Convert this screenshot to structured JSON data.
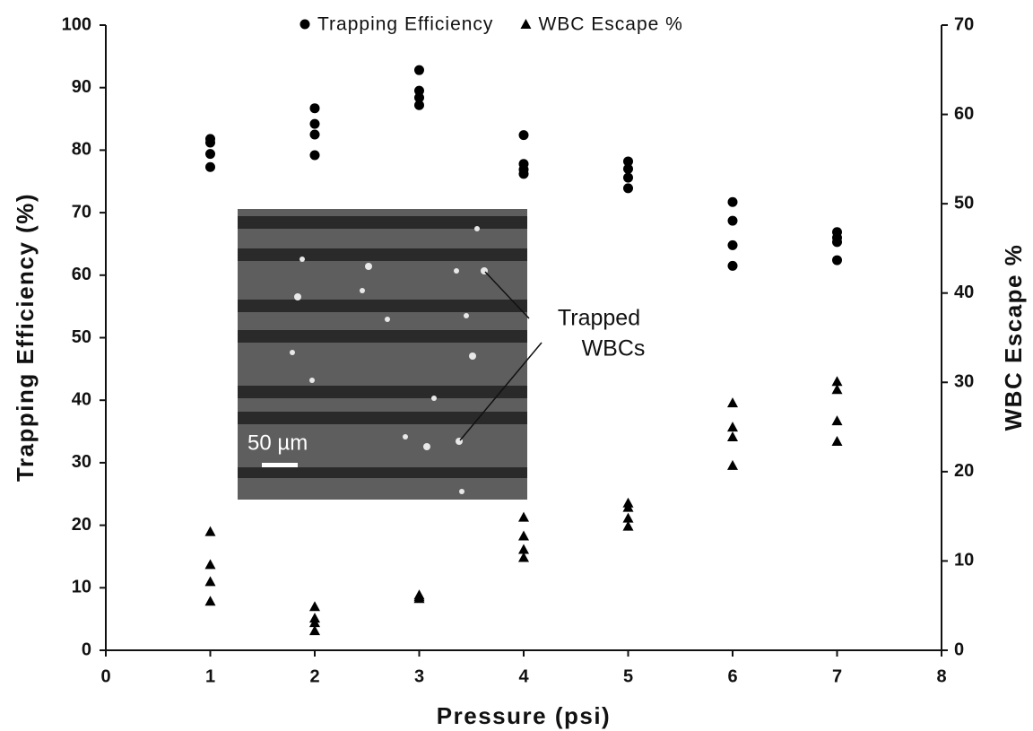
{
  "chart_data": {
    "type": "scatter",
    "xlabel": "Pressure (psi)",
    "ylabel": "Trapping Efficiency (%)",
    "y2label": "WBC Escape %",
    "xlim": [
      0,
      8
    ],
    "xticks": [
      0,
      1,
      2,
      3,
      4,
      5,
      6,
      7,
      8
    ],
    "ylim": [
      0,
      100
    ],
    "yticks": [
      0,
      10,
      20,
      30,
      40,
      50,
      60,
      70,
      80,
      90,
      100
    ],
    "y2lim": [
      0,
      70
    ],
    "y2ticks": [
      0,
      10,
      20,
      30,
      40,
      50,
      60,
      70
    ],
    "legend": "top",
    "series": [
      {
        "name": "Trapping Efficiency",
        "color": "#000000",
        "marker": "circle",
        "x": [
          1,
          1,
          1,
          1,
          2,
          2,
          2,
          2,
          3,
          3,
          3,
          3,
          4,
          4,
          4,
          4,
          5,
          5,
          5,
          5,
          6,
          6,
          6,
          6,
          7,
          7,
          7,
          7
        ],
        "values": [
          81.8,
          81.2,
          79.4,
          77.3,
          86.7,
          84.2,
          82.5,
          79.2,
          92.8,
          89.5,
          88.4,
          87.2,
          82.4,
          77.8,
          76.9,
          76.2,
          78.2,
          77.0,
          75.6,
          73.9,
          71.7,
          68.7,
          64.8,
          61.5,
          66.9,
          66.0,
          65.3,
          62.4
        ]
      },
      {
        "name": "WBC Escape %",
        "color": "#000000",
        "marker": "triangle",
        "axis": "y2",
        "x": [
          1,
          1,
          1,
          1,
          2,
          2,
          2,
          2,
          3,
          3,
          3,
          4,
          4,
          4,
          4,
          5,
          5,
          5,
          5,
          6,
          6,
          6,
          6,
          7,
          7,
          7,
          7
        ],
        "values": [
          13.3,
          9.6,
          7.7,
          5.5,
          4.9,
          3.6,
          3.1,
          2.2,
          6.2,
          6.0,
          5.8,
          14.9,
          12.8,
          11.3,
          10.4,
          16.5,
          16.0,
          14.8,
          13.9,
          27.7,
          25.0,
          23.9,
          20.7,
          30.1,
          29.2,
          25.7,
          23.4
        ]
      }
    ],
    "inset_scale_label": "50 µm",
    "annotation": [
      "Trapped",
      "WBCs"
    ]
  }
}
